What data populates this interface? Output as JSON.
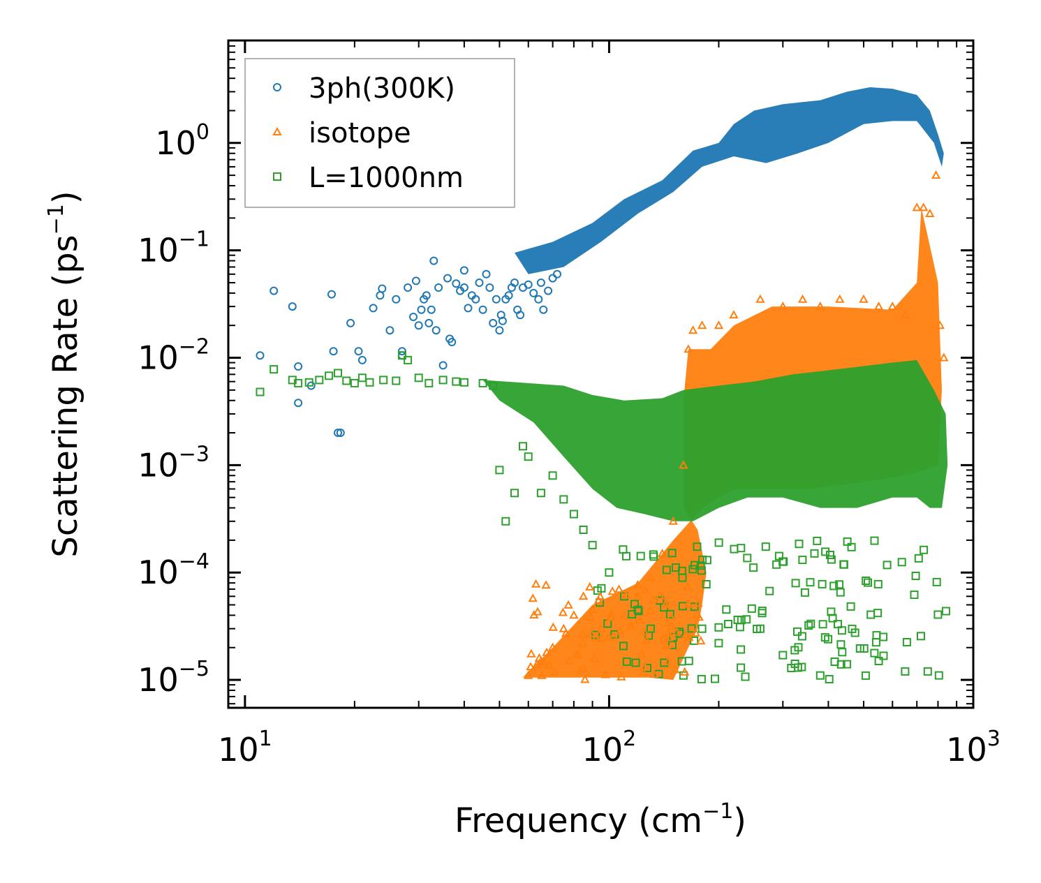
{
  "chart_data": {
    "type": "scatter",
    "title": "",
    "xlabel": "Frequency (cm",
    "xlabel_sup": "−1",
    "xlabel_end": ")",
    "ylabel": "Scattering Rate (ps",
    "ylabel_sup": "−1",
    "ylabel_end": ")",
    "xscale": "log",
    "yscale": "log",
    "xlim": [
      9,
      1000
    ],
    "ylim": [
      5.5e-06,
      9
    ],
    "legend_position": "top-left",
    "x_ticks": [
      {
        "base": "10",
        "exp": "1",
        "value": 10
      },
      {
        "base": "10",
        "exp": "2",
        "value": 100
      },
      {
        "base": "10",
        "exp": "3",
        "value": 1000
      }
    ],
    "y_ticks": [
      {
        "base": "10",
        "exp": "0",
        "value": 1
      },
      {
        "base": "10",
        "exp": "−1",
        "value": 0.1
      },
      {
        "base": "10",
        "exp": "−2",
        "value": 0.01
      },
      {
        "base": "10",
        "exp": "−3",
        "value": 0.001
      },
      {
        "base": "10",
        "exp": "−4",
        "value": 0.0001
      },
      {
        "base": "10",
        "exp": "−5",
        "value": 1e-05
      }
    ],
    "series": [
      {
        "name": "3ph(300K)",
        "color": "#1f77b4",
        "marker": "circle",
        "points": [
          [
            11,
            0.0105
          ],
          [
            12,
            0.042
          ],
          [
            13.5,
            0.03
          ],
          [
            14,
            0.0083
          ],
          [
            14,
            0.0038
          ],
          [
            15.2,
            0.0055
          ],
          [
            17.3,
            0.039
          ],
          [
            17.5,
            0.0115
          ],
          [
            18,
            0.002
          ],
          [
            18.3,
            0.002
          ],
          [
            19.5,
            0.021
          ],
          [
            20.5,
            0.0115
          ],
          [
            21,
            0.0095
          ],
          [
            22.5,
            0.029
          ],
          [
            23.5,
            0.038
          ],
          [
            23.8,
            0.044
          ],
          [
            25,
            0.018
          ],
          [
            26,
            0.035
          ],
          [
            27,
            0.0115
          ],
          [
            27,
            0.0105
          ],
          [
            28,
            0.045
          ],
          [
            29,
            0.024
          ],
          [
            29.5,
            0.052
          ],
          [
            30,
            0.02
          ],
          [
            30.5,
            0.028
          ],
          [
            31,
            0.035
          ],
          [
            31.5,
            0.038
          ],
          [
            32,
            0.021
          ],
          [
            32.5,
            0.028
          ],
          [
            33,
            0.08
          ],
          [
            33.5,
            0.018
          ],
          [
            34,
            0.045
          ],
          [
            35,
            0.0085
          ],
          [
            36,
            0.055
          ],
          [
            36.5,
            0.015
          ],
          [
            37,
            0.014
          ],
          [
            38,
            0.049
          ],
          [
            39,
            0.042
          ],
          [
            40,
            0.065
          ],
          [
            40,
            0.045
          ],
          [
            41,
            0.029
          ],
          [
            42,
            0.038
          ],
          [
            43,
            0.035
          ],
          [
            44,
            0.05
          ],
          [
            45,
            0.028
          ],
          [
            46,
            0.06
          ],
          [
            47,
            0.045
          ],
          [
            48,
            0.021
          ],
          [
            49,
            0.035
          ],
          [
            50,
            0.018
          ],
          [
            50.5,
            0.025
          ],
          [
            51,
            0.022
          ],
          [
            52,
            0.035
          ],
          [
            53,
            0.038
          ],
          [
            54,
            0.045
          ],
          [
            55,
            0.05
          ],
          [
            56,
            0.028
          ],
          [
            57,
            0.025
          ],
          [
            58,
            0.045
          ],
          [
            60,
            0.048
          ],
          [
            62,
            0.04
          ],
          [
            64,
            0.035
          ],
          [
            65,
            0.05
          ],
          [
            66,
            0.028
          ],
          [
            68,
            0.042
          ],
          [
            70,
            0.055
          ],
          [
            72,
            0.06
          ]
        ]
      },
      {
        "name": "isotope",
        "color": "#ff7f0e",
        "marker": "triangle",
        "points": [
          [
            60,
            1.1e-05
          ],
          [
            65,
            1.5e-05
          ],
          [
            70,
            2e-05
          ],
          [
            75,
            3e-05
          ],
          [
            80,
            4e-05
          ],
          [
            85,
            6e-05
          ],
          [
            90,
            4.5e-05
          ],
          [
            95,
            3e-05
          ],
          [
            100,
            2.5e-05
          ],
          [
            110,
            4e-05
          ],
          [
            120,
            6e-05
          ],
          [
            130,
            9e-05
          ],
          [
            140,
            0.00015
          ],
          [
            150,
            0.0003
          ],
          [
            160,
            0.001
          ],
          [
            165,
            0.012
          ],
          [
            170,
            0.018
          ],
          [
            180,
            0.02
          ],
          [
            200,
            0.02
          ],
          [
            220,
            0.025
          ],
          [
            260,
            0.035
          ],
          [
            300,
            0.03
          ],
          [
            340,
            0.035
          ],
          [
            380,
            0.03
          ],
          [
            430,
            0.035
          ],
          [
            500,
            0.035
          ],
          [
            550,
            0.03
          ],
          [
            600,
            0.03
          ],
          [
            650,
            0.025
          ],
          [
            700,
            0.25
          ],
          [
            730,
            0.25
          ],
          [
            760,
            0.22
          ],
          [
            790,
            0.5
          ],
          [
            810,
            0.02
          ],
          [
            830,
            0.01
          ]
        ]
      },
      {
        "name": "L=1000nm",
        "color": "#2ca02c",
        "marker": "square",
        "points": [
          [
            11,
            0.0048
          ],
          [
            12,
            0.0078
          ],
          [
            13.5,
            0.0062
          ],
          [
            14,
            0.0058
          ],
          [
            15,
            0.0059
          ],
          [
            16,
            0.0062
          ],
          [
            17,
            0.0068
          ],
          [
            18,
            0.0072
          ],
          [
            19,
            0.0061
          ],
          [
            20,
            0.0058
          ],
          [
            21,
            0.0065
          ],
          [
            22,
            0.0059
          ],
          [
            24,
            0.0062
          ],
          [
            26,
            0.0061
          ],
          [
            27,
            0.0105
          ],
          [
            28,
            0.0095
          ],
          [
            30,
            0.0065
          ],
          [
            32,
            0.0058
          ],
          [
            35,
            0.0062
          ],
          [
            38,
            0.006
          ],
          [
            40,
            0.0059
          ],
          [
            45,
            0.0058
          ],
          [
            48,
            0.0055
          ],
          [
            50,
            0.0009
          ],
          [
            52,
            0.0003
          ],
          [
            55,
            0.00055
          ],
          [
            58,
            0.0015
          ],
          [
            60,
            0.0012
          ],
          [
            65,
            0.00055
          ],
          [
            70,
            0.0008
          ],
          [
            75,
            0.00048
          ],
          [
            80,
            0.00035
          ],
          [
            85,
            0.00025
          ],
          [
            90,
            0.00018
          ],
          [
            100,
            0.0001
          ],
          [
            110,
            6e-05
          ],
          [
            120,
            4.5e-05
          ],
          [
            130,
            3e-05
          ],
          [
            150,
            2.5e-05
          ],
          [
            160,
            1.1e-05
          ],
          [
            180,
            3e-05
          ],
          [
            200,
            2.2e-05
          ],
          [
            230,
            1.3e-05
          ],
          [
            260,
            3e-05
          ],
          [
            300,
            1.7e-05
          ],
          [
            330,
            1.3e-05
          ],
          [
            380,
            1.1e-05
          ],
          [
            450,
            1.4e-05
          ],
          [
            550,
            1.5e-05
          ],
          [
            650,
            1.2e-05
          ],
          [
            750,
            1.2e-05
          ]
        ]
      }
    ]
  }
}
